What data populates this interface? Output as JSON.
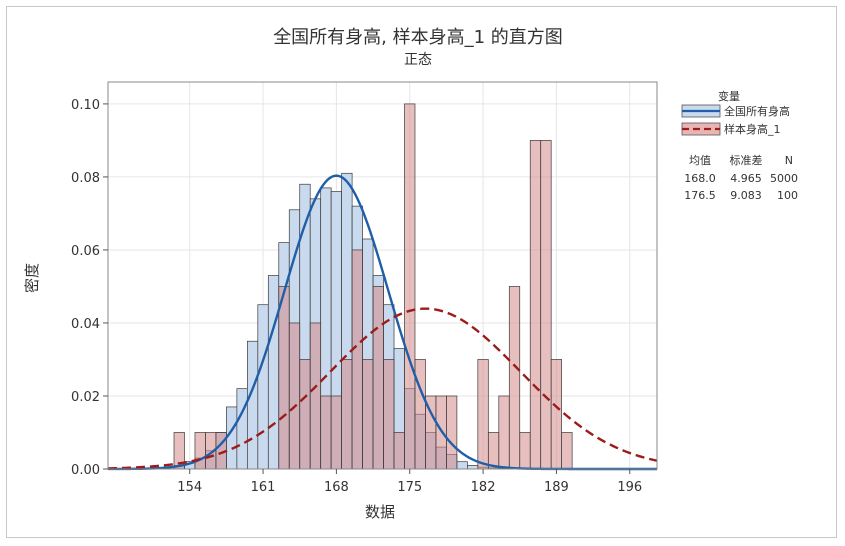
{
  "chart_data": {
    "type": "bar",
    "title": "全国所有身高, 样本身高_1 的直方图",
    "subtitle": "正态",
    "xlabel": "数据",
    "ylabel": "密度",
    "xlim": [
      146.2,
      198.6
    ],
    "ylim": [
      0,
      0.106
    ],
    "x_ticks": [
      154,
      161,
      168,
      175,
      182,
      189,
      196
    ],
    "y_ticks": [
      0.0,
      0.02,
      0.04,
      0.06,
      0.08,
      0.1
    ],
    "grid": true,
    "bin_width": 1,
    "legend": {
      "title": "变量",
      "position": "top-right",
      "stats_header": [
        "均值",
        "标准差",
        "N"
      ]
    },
    "series": [
      {
        "name": "全国所有身高",
        "color": "#1f5fa8",
        "fill": "#c9d9ee",
        "line_style": "solid",
        "mean": 168.0,
        "sd": 4.965,
        "n": 5000,
        "stats": [
          "168.0",
          "4.965",
          "5000"
        ],
        "bins": [
          {
            "x": 153,
            "y": 0.001
          },
          {
            "x": 154,
            "y": 0.002
          },
          {
            "x": 155,
            "y": 0.003
          },
          {
            "x": 156,
            "y": 0.005
          },
          {
            "x": 157,
            "y": 0.01
          },
          {
            "x": 158,
            "y": 0.017
          },
          {
            "x": 159,
            "y": 0.022
          },
          {
            "x": 160,
            "y": 0.035
          },
          {
            "x": 161,
            "y": 0.045
          },
          {
            "x": 162,
            "y": 0.053
          },
          {
            "x": 163,
            "y": 0.062
          },
          {
            "x": 164,
            "y": 0.071
          },
          {
            "x": 165,
            "y": 0.078
          },
          {
            "x": 166,
            "y": 0.074
          },
          {
            "x": 167,
            "y": 0.077
          },
          {
            "x": 168,
            "y": 0.076
          },
          {
            "x": 169,
            "y": 0.081
          },
          {
            "x": 170,
            "y": 0.072
          },
          {
            "x": 171,
            "y": 0.063
          },
          {
            "x": 172,
            "y": 0.053
          },
          {
            "x": 173,
            "y": 0.045
          },
          {
            "x": 174,
            "y": 0.033
          },
          {
            "x": 175,
            "y": 0.022
          },
          {
            "x": 176,
            "y": 0.015
          },
          {
            "x": 177,
            "y": 0.01
          },
          {
            "x": 178,
            "y": 0.006
          },
          {
            "x": 179,
            "y": 0.004
          },
          {
            "x": 180,
            "y": 0.002
          },
          {
            "x": 181,
            "y": 0.001
          },
          {
            "x": 182,
            "y": 0.0005
          },
          {
            "x": 183,
            "y": 0.0003
          },
          {
            "x": 184,
            "y": 0.0002
          }
        ]
      },
      {
        "name": "样本身高_1",
        "color": "#9e1b1b",
        "fill": "#d48a8a",
        "line_style": "dashed",
        "mean": 176.5,
        "sd": 9.083,
        "n": 100,
        "stats": [
          "176.5",
          "9.083",
          "100"
        ],
        "bins": [
          {
            "x": 153,
            "y": 0.01
          },
          {
            "x": 155,
            "y": 0.01
          },
          {
            "x": 156,
            "y": 0.01
          },
          {
            "x": 157,
            "y": 0.01
          },
          {
            "x": 163,
            "y": 0.05
          },
          {
            "x": 164,
            "y": 0.04
          },
          {
            "x": 165,
            "y": 0.03
          },
          {
            "x": 166,
            "y": 0.04
          },
          {
            "x": 167,
            "y": 0.02
          },
          {
            "x": 168,
            "y": 0.02
          },
          {
            "x": 169,
            "y": 0.03
          },
          {
            "x": 170,
            "y": 0.06
          },
          {
            "x": 171,
            "y": 0.03
          },
          {
            "x": 172,
            "y": 0.05
          },
          {
            "x": 173,
            "y": 0.03
          },
          {
            "x": 174,
            "y": 0.01
          },
          {
            "x": 175,
            "y": 0.1
          },
          {
            "x": 176,
            "y": 0.03
          },
          {
            "x": 177,
            "y": 0.02
          },
          {
            "x": 178,
            "y": 0.02
          },
          {
            "x": 179,
            "y": 0.02
          },
          {
            "x": 182,
            "y": 0.03
          },
          {
            "x": 183,
            "y": 0.01
          },
          {
            "x": 184,
            "y": 0.02
          },
          {
            "x": 185,
            "y": 0.05
          },
          {
            "x": 186,
            "y": 0.01
          },
          {
            "x": 187,
            "y": 0.09
          },
          {
            "x": 188,
            "y": 0.09
          },
          {
            "x": 189,
            "y": 0.03
          },
          {
            "x": 190,
            "y": 0.01
          }
        ]
      }
    ]
  }
}
